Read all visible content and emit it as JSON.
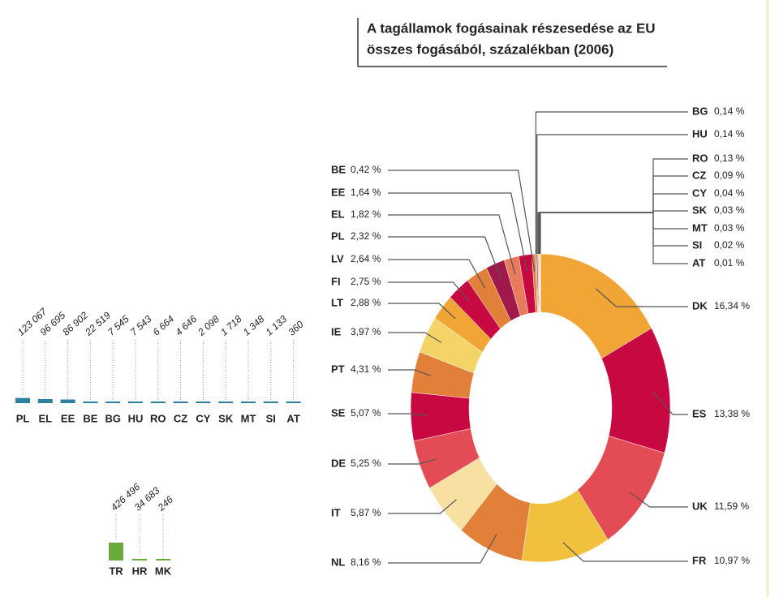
{
  "chart_data": [
    {
      "type": "bar",
      "categories": [
        "PL",
        "EL",
        "EE",
        "BE",
        "BG",
        "HU",
        "RO",
        "CZ",
        "CY",
        "SK",
        "MT",
        "SI",
        "AT"
      ],
      "values": [
        123067,
        96695,
        86902,
        22519,
        7545,
        7543,
        6664,
        4646,
        2098,
        1718,
        1348,
        1133,
        360
      ],
      "value_labels": [
        "123 067",
        "96 695",
        "86 902",
        "22 519",
        "7 545",
        "7 543",
        "6 664",
        "4 646",
        "2 098",
        "1 718",
        "1 348",
        "1 133",
        "360"
      ],
      "color": "#2f7f9e"
    },
    {
      "type": "bar",
      "categories": [
        "TR",
        "HR",
        "MK"
      ],
      "values": [
        426496,
        34683,
        246
      ],
      "value_labels": [
        "426 496",
        "34 683",
        "246"
      ],
      "color": "#6aaa3a"
    },
    {
      "type": "donut",
      "title": [
        "A tagállamok fogásainak részesedése az EU",
        "összes fogásából, százalékban (2006)"
      ],
      "categories": [
        "DK",
        "ES",
        "UK",
        "FR",
        "NL",
        "IT",
        "DE",
        "SE",
        "PT",
        "IE",
        "LT",
        "FI",
        "LV",
        "PL",
        "EL",
        "EE",
        "BE",
        "BG",
        "HU",
        "RO",
        "CZ",
        "CY",
        "SK",
        "MT",
        "SI",
        "AT"
      ],
      "values": [
        16.34,
        13.38,
        11.59,
        10.97,
        8.16,
        5.87,
        5.25,
        5.07,
        4.31,
        3.97,
        2.88,
        2.75,
        2.64,
        2.32,
        1.82,
        1.64,
        0.42,
        0.14,
        0.14,
        0.13,
        0.09,
        0.04,
        0.03,
        0.03,
        0.02,
        0.01
      ],
      "value_labels": [
        "16,34 %",
        "13,38 %",
        "11,59 %",
        "10,97 %",
        "8,16 %",
        "5,87 %",
        "5,25 %",
        "5,07 %",
        "4,31 %",
        "3,97 %",
        "2,88 %",
        "2,75 %",
        "2,64 %",
        "2,32 %",
        "1,82 %",
        "1,64 %",
        "0,42 %",
        "0,14 %",
        "0,14 %",
        "0,13 %",
        "0,09 %",
        "0,04 %",
        "0,03 %",
        "0,03 %",
        "0,02 %",
        "0,01 %"
      ],
      "colors": [
        "#f0a535",
        "#c80841",
        "#e34c55",
        "#f1c13d",
        "#e2803a",
        "#f8e0a3",
        "#e34c55",
        "#c80841",
        "#e2803a",
        "#f4d466",
        "#f0a535",
        "#c80841",
        "#e2803a",
        "#a1184a",
        "#e97a5c",
        "#c80841",
        "#e2803a",
        "#8a8a8a",
        "#c80841",
        "#f0a535",
        "#e2803a",
        "#c80841",
        "#f0a535",
        "#e34c55",
        "#f4d466",
        "#e2803a"
      ]
    }
  ]
}
